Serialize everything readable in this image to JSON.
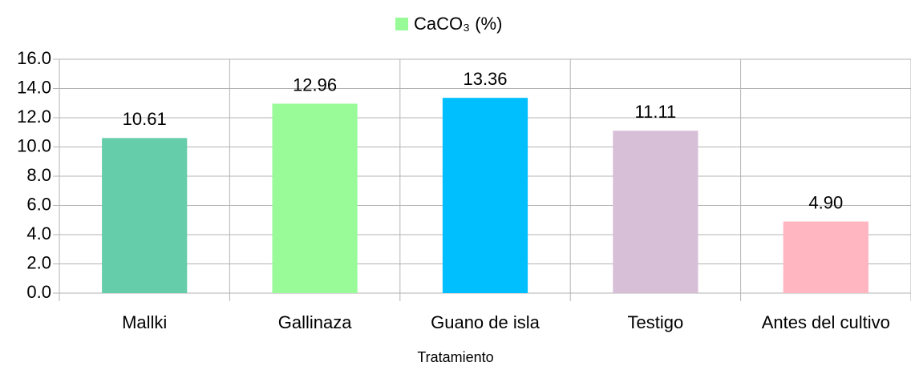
{
  "chart_data": {
    "type": "bar",
    "x_label": "Tratamiento",
    "categories": [
      "Mallki",
      "Gallinaza",
      "Guano de isla",
      "Testigo",
      "Antes del cultivo"
    ],
    "series": [
      {
        "name": "CaCO₃ (%)",
        "color": "#98fb98",
        "colors": [
          "#66cdaa",
          "#98fb98",
          "#00bfff",
          "#d8bfd8",
          "#ffb6c1"
        ],
        "values": [
          10.61,
          12.96,
          13.36,
          11.11,
          4.9
        ],
        "value_labels": [
          "10.61",
          "12.96",
          "13.36",
          "11.11",
          "4.90"
        ]
      }
    ],
    "ylim": [
      0,
      16
    ],
    "yticks": [
      {
        "value": 0,
        "label": "0.0"
      },
      {
        "value": 2,
        "label": "2.0"
      },
      {
        "value": 4,
        "label": "4.0"
      },
      {
        "value": 6,
        "label": "6.0"
      },
      {
        "value": 8,
        "label": "8.0"
      },
      {
        "value": 10,
        "label": "10.0"
      },
      {
        "value": 12,
        "label": "12.0"
      },
      {
        "value": 14,
        "label": "14.0"
      },
      {
        "value": 16,
        "label": "16.0"
      }
    ],
    "grid": true,
    "legend": "top"
  }
}
